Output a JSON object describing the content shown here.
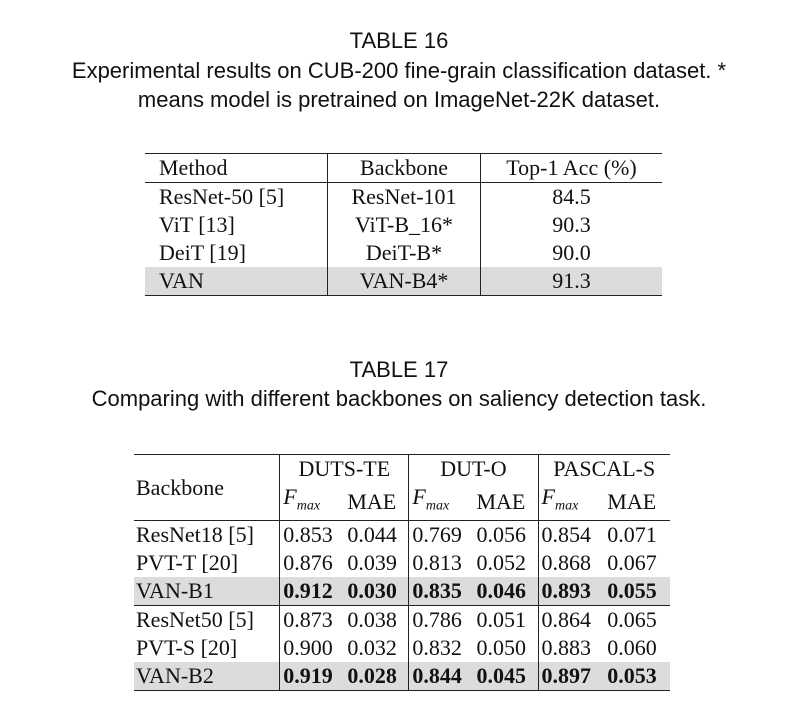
{
  "table16": {
    "title": "TABLE 16",
    "caption_line1": "Experimental results on CUB-200 fine-grain classification dataset. *",
    "caption_line2": "means model is pretrained on ImageNet-22K dataset.",
    "headers": [
      "Method",
      "Backbone",
      "Top-1 Acc (%)"
    ],
    "rows": [
      {
        "method": "ResNet-50 [5]",
        "backbone": "ResNet-101",
        "acc": "84.5"
      },
      {
        "method": "ViT [13]",
        "backbone": "ViT-B_16*",
        "acc": "90.3"
      },
      {
        "method": "DeiT [19]",
        "backbone": "DeiT-B*",
        "acc": "90.0"
      },
      {
        "method": "VAN",
        "backbone": "VAN-B4*",
        "acc": "91.3"
      }
    ]
  },
  "table17": {
    "title": "TABLE 17",
    "caption": "Comparing with different backbones on saliency detection task.",
    "backbone_header": "Backbone",
    "datasets": [
      "DUTS-TE",
      "DUT-O",
      "PASCAL-S"
    ],
    "fmax_base": "F",
    "fmax_sub": "max",
    "mae_label": "MAE",
    "rows": [
      {
        "name": "ResNet18 [5]",
        "vals": [
          "0.853",
          "0.044",
          "0.769",
          "0.056",
          "0.854",
          "0.071"
        ]
      },
      {
        "name": "PVT-T [20]",
        "vals": [
          "0.876",
          "0.039",
          "0.813",
          "0.052",
          "0.868",
          "0.067"
        ]
      },
      {
        "name": "VAN-B1",
        "vals": [
          "0.912",
          "0.030",
          "0.835",
          "0.046",
          "0.893",
          "0.055"
        ]
      },
      {
        "name": "ResNet50 [5]",
        "vals": [
          "0.873",
          "0.038",
          "0.786",
          "0.051",
          "0.864",
          "0.065"
        ]
      },
      {
        "name": "PVT-S [20]",
        "vals": [
          "0.900",
          "0.032",
          "0.832",
          "0.050",
          "0.883",
          "0.060"
        ]
      },
      {
        "name": "VAN-B2",
        "vals": [
          "0.919",
          "0.028",
          "0.844",
          "0.045",
          "0.897",
          "0.053"
        ]
      }
    ]
  }
}
